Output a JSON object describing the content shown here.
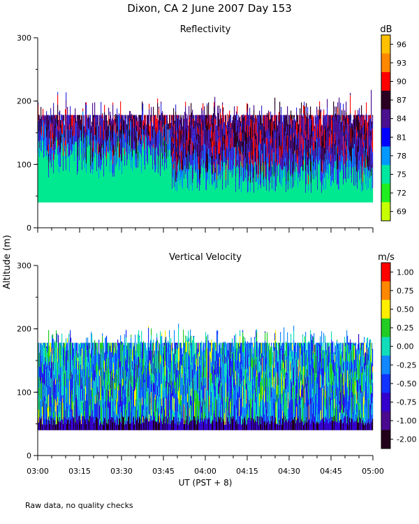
{
  "header": {
    "title": "Dixon, CA  2 June 2007  Day 153"
  },
  "shared": {
    "ylabel": "Altitude (m)",
    "xlabel": "UT  (PST + 8)",
    "footer": "Raw data, no quality checks"
  },
  "chart_data": [
    {
      "type": "heatmap",
      "title": "Reflectivity",
      "unit": "dB",
      "ylim": [
        0,
        300
      ],
      "yticks": [
        "0",
        "100",
        "200",
        "300"
      ],
      "xlim": [
        "03:00",
        "05:00"
      ],
      "xticks": [
        "03:00",
        "03:15",
        "03:30",
        "03:45",
        "04:00",
        "04:15",
        "04:30",
        "04:45",
        "05:00"
      ],
      "data_altitude_range_m": [
        40,
        200
      ],
      "colorbar": {
        "labels": [
          "96",
          "93",
          "90",
          "87",
          "84",
          "81",
          "78",
          "75",
          "72",
          "69"
        ],
        "colors": [
          "#ffc000",
          "#ff8800",
          "#ff0000",
          "#2a0022",
          "#4a1090",
          "#0000ff",
          "#0099ff",
          "#00e8a0",
          "#20ee20",
          "#c8ff00"
        ]
      },
      "palette": {
        "low": "#00e890",
        "mid1": "#0088ff",
        "mid2": "#3030e0",
        "high1": "#4a1090",
        "high2": "#2a0022",
        "peak": "#ff1010"
      }
    },
    {
      "type": "heatmap",
      "title": "Vertical Velocity",
      "unit": "m/s",
      "ylim": [
        0,
        300
      ],
      "yticks": [
        "0",
        "100",
        "200",
        "300"
      ],
      "xlim": [
        "03:00",
        "05:00"
      ],
      "xticks": [
        "03:00",
        "03:15",
        "03:30",
        "03:45",
        "04:00",
        "04:15",
        "04:30",
        "04:45",
        "05:00"
      ],
      "data_altitude_range_m": [
        40,
        200
      ],
      "colorbar": {
        "labels": [
          "1.00",
          "0.75",
          "0.50",
          "0.25",
          "0.00",
          "-0.25",
          "-0.50",
          "-0.75",
          "-1.00",
          "-2.00"
        ],
        "colors": [
          "#ff0000",
          "#ff8800",
          "#ffee00",
          "#22cc22",
          "#11ddbb",
          "#1188ff",
          "#1133ff",
          "#3300cc",
          "#4a0a90",
          "#22001a"
        ]
      },
      "palette": {
        "low": "#3300cc",
        "mid1": "#1133ff",
        "mid2": "#1188ff",
        "high1": "#11ddbb",
        "high2": "#22cc22",
        "peak": "#ffee00"
      }
    }
  ]
}
